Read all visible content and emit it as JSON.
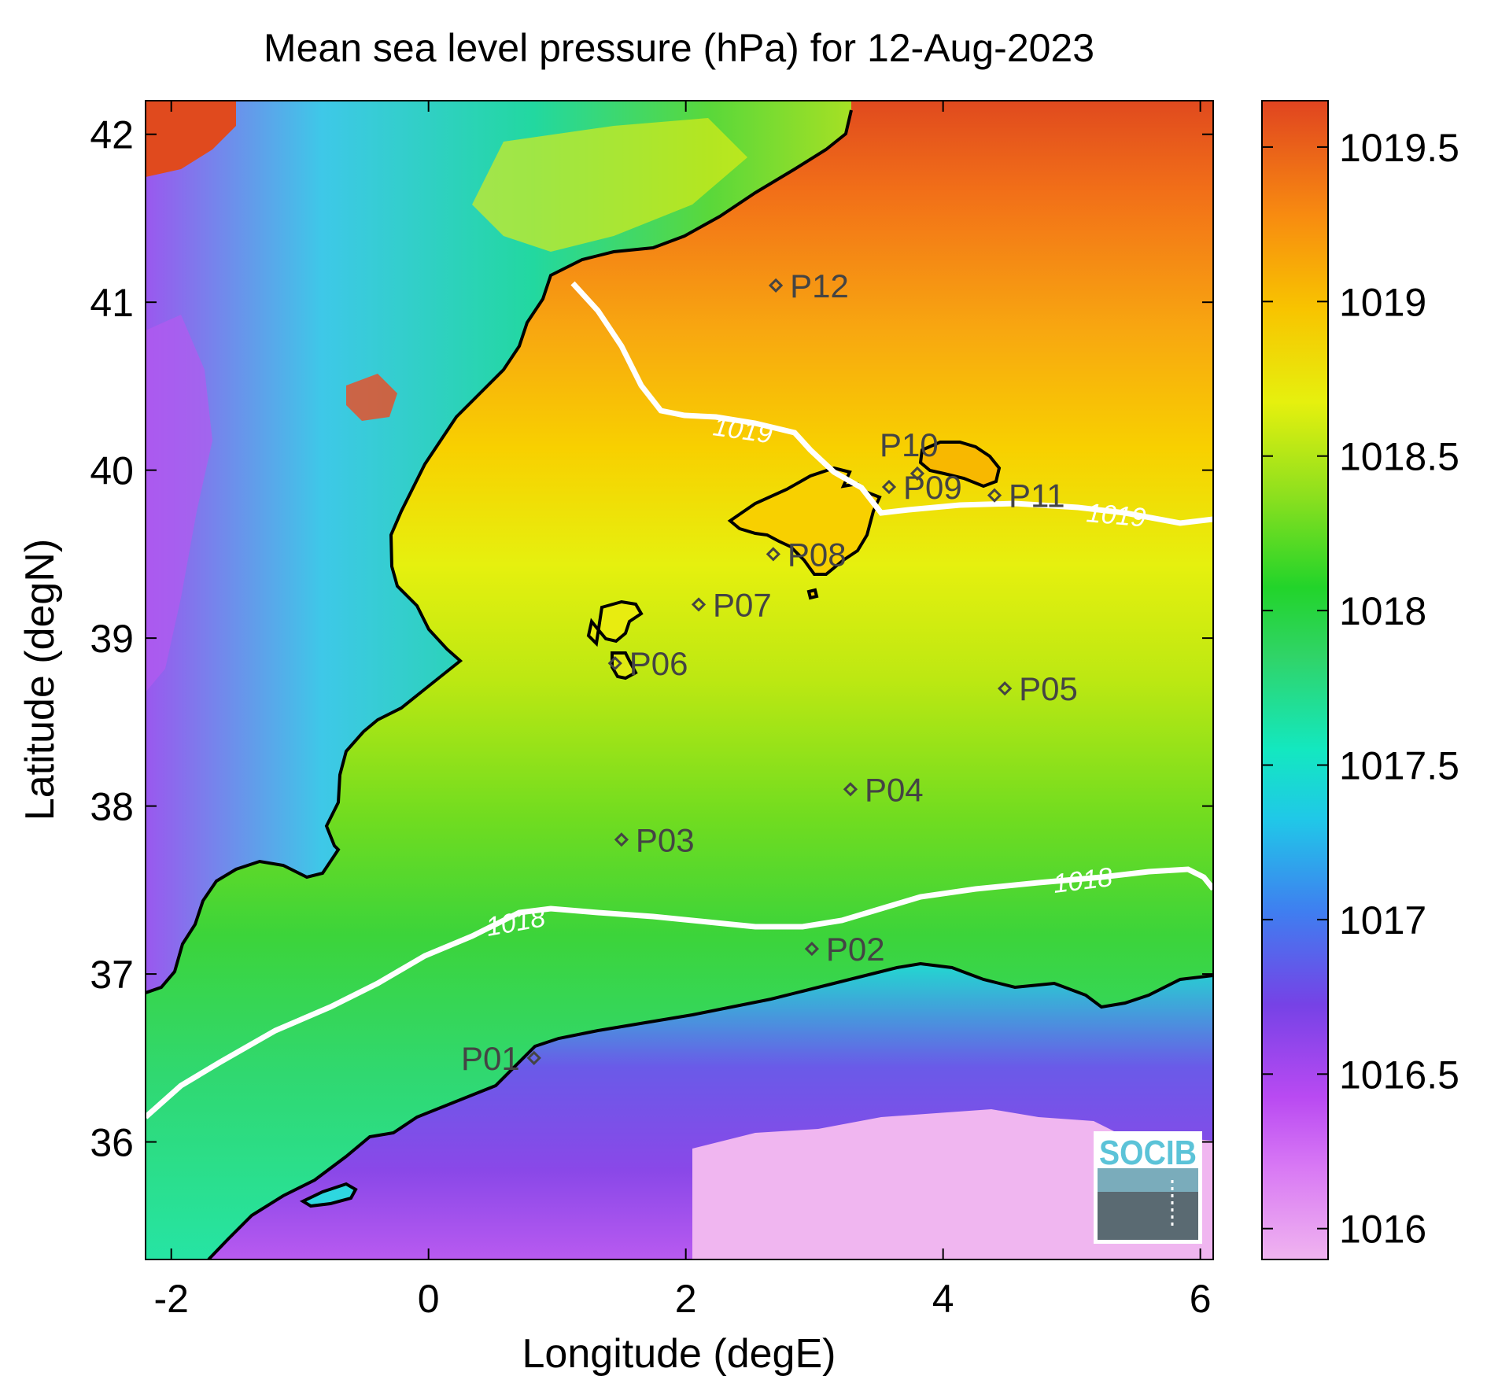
{
  "title": "Mean sea level pressure (hPa) for 12-Aug-2023",
  "x_axis": {
    "label": "Longitude (degE)",
    "range": [
      -2.2,
      6.1
    ],
    "ticks": [
      -2,
      0,
      2,
      4,
      6
    ],
    "tick_labels": [
      "-2",
      "0",
      "2",
      "4",
      "6"
    ]
  },
  "y_axis": {
    "label": "Latitude (degN)",
    "range": [
      35.3,
      42.2
    ],
    "ticks": [
      36,
      37,
      38,
      39,
      40,
      41,
      42
    ],
    "tick_labels": [
      "36",
      "37",
      "38",
      "39",
      "40",
      "41",
      "42"
    ]
  },
  "colorbar": {
    "range": [
      1015.9,
      1019.65
    ],
    "ticks": [
      1016,
      1016.5,
      1017,
      1017.5,
      1018,
      1018.5,
      1019,
      1019.5
    ],
    "tick_labels": [
      "1016",
      "1016.5",
      "1017",
      "1017.5",
      "1018",
      "1018.5",
      "1019",
      "1019.5"
    ],
    "colors": [
      "#f0b4f0",
      "#c850f5",
      "#7a42e8",
      "#3f88f0",
      "#13e8d0",
      "#30d070",
      "#22d42a",
      "#8ee01e",
      "#e8f00e",
      "#f8c800",
      "#f89810",
      "#f06018",
      "#e04420"
    ]
  },
  "contours": [
    {
      "value": 1018,
      "label": "1018"
    },
    {
      "value": 1019,
      "label": "1019"
    }
  ],
  "stations": [
    {
      "id": "P01",
      "lon": 0.82,
      "lat": 36.5
    },
    {
      "id": "P02",
      "lon": 2.98,
      "lat": 37.15
    },
    {
      "id": "P03",
      "lon": 1.5,
      "lat": 37.8
    },
    {
      "id": "P04",
      "lon": 3.28,
      "lat": 38.1
    },
    {
      "id": "P05",
      "lon": 4.48,
      "lat": 38.7
    },
    {
      "id": "P06",
      "lon": 1.45,
      "lat": 38.85
    },
    {
      "id": "P07",
      "lon": 2.1,
      "lat": 39.2
    },
    {
      "id": "P08",
      "lon": 2.68,
      "lat": 39.5
    },
    {
      "id": "P09",
      "lon": 3.58,
      "lat": 39.9
    },
    {
      "id": "P10",
      "lon": 3.8,
      "lat": 39.98
    },
    {
      "id": "P11",
      "lon": 4.4,
      "lat": 39.85
    },
    {
      "id": "P12",
      "lon": 2.7,
      "lat": 41.1
    }
  ],
  "logo": {
    "text": "SOCIB"
  }
}
